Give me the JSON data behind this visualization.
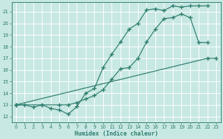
{
  "xlabel": "Humidex (Indice chaleur)",
  "bg_color": "#c8e8e4",
  "line_color": "#2e7d6e",
  "grid_color": "#ffffff",
  "xlim": [
    -0.5,
    23.5
  ],
  "ylim": [
    11.5,
    21.8
  ],
  "xticks": [
    0,
    1,
    2,
    3,
    4,
    5,
    6,
    7,
    8,
    9,
    10,
    11,
    12,
    13,
    14,
    15,
    16,
    17,
    18,
    19,
    20,
    21,
    22,
    23
  ],
  "yticks": [
    12,
    13,
    14,
    15,
    16,
    17,
    18,
    19,
    20,
    21
  ],
  "line1_x": [
    0,
    1,
    2,
    3,
    4,
    5,
    6,
    7,
    8,
    9,
    10,
    11,
    12,
    13,
    14,
    15,
    16,
    17,
    18,
    19,
    20,
    21,
    22
  ],
  "line1_y": [
    13.0,
    13.0,
    12.8,
    13.0,
    12.7,
    12.55,
    12.2,
    12.85,
    14.0,
    14.4,
    16.2,
    17.35,
    18.4,
    19.5,
    20.0,
    21.15,
    21.25,
    21.1,
    21.5,
    21.4,
    21.5,
    21.5,
    21.5
  ],
  "line2_x": [
    0,
    3,
    5,
    6,
    7,
    8,
    9,
    10,
    11,
    12,
    13,
    14,
    15,
    16,
    17,
    18,
    19,
    20,
    21,
    22
  ],
  "line2_y": [
    13.0,
    13.0,
    13.0,
    13.0,
    13.2,
    13.5,
    13.8,
    14.3,
    15.2,
    16.1,
    16.2,
    17.0,
    18.4,
    19.5,
    20.4,
    20.5,
    20.8,
    20.5,
    18.35,
    18.35
  ],
  "line3_x": [
    0,
    22,
    23
  ],
  "line3_y": [
    13.0,
    17.0,
    17.0
  ]
}
